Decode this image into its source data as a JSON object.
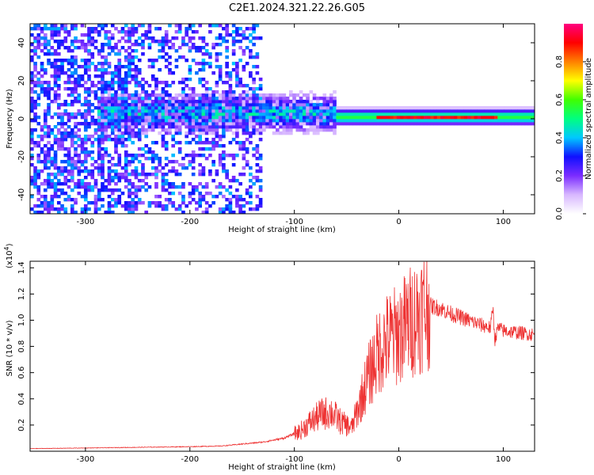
{
  "chart_data": [
    {
      "type": "heatmap",
      "title": "C2E1.2024.321.22.26.G05",
      "xlabel": "Height of straight line (km)",
      "ylabel": "Frequency (Hz)",
      "xlim": [
        -353,
        130
      ],
      "ylim": [
        -50,
        50
      ],
      "x_ticks": [
        -300,
        -200,
        -100,
        0,
        100
      ],
      "y_ticks": [
        -40,
        -20,
        0,
        20,
        40
      ],
      "grid": false,
      "colorbar": {
        "label": "Normalized spectral amplitude",
        "range": [
          0,
          1
        ],
        "ticks": [
          0.0,
          0.2,
          0.4,
          0.6,
          0.8
        ],
        "tick_labels": [
          "0.0",
          "0.2",
          "0.4",
          "0.6",
          "0.8"
        ],
        "colormap": [
          "#ffffff",
          "#d8b8ff",
          "#7b2cff",
          "#1010ff",
          "#00c8ff",
          "#00ff80",
          "#40ff00",
          "#ffff00",
          "#ff8000",
          "#ff0000",
          "#ff0080"
        ]
      },
      "features": [
        {
          "x_range": [
            -353,
            -130
          ],
          "description": "diffuse scattered purple noise across full frequency range"
        },
        {
          "x_range": [
            -280,
            -60
          ],
          "frequency_center": 3,
          "level": 0.35
        },
        {
          "x_range": [
            -60,
            130
          ],
          "frequency_center": 1,
          "level": 0.55
        },
        {
          "x_range": [
            -20,
            95
          ],
          "frequency_center": 1,
          "level": 0.95
        }
      ]
    },
    {
      "type": "line",
      "xlabel": "Height of straight line (km)",
      "ylabel": "SNR (10 * v/v)",
      "y_scale_label": "(x10",
      "y_scale_exponent": "4",
      "xlim": [
        -353,
        130
      ],
      "ylim": [
        0,
        14500
      ],
      "x_ticks": [
        -300,
        -200,
        -100,
        0,
        100
      ],
      "y_ticks": [
        0.2,
        0.4,
        0.6,
        0.8,
        1.0,
        1.2,
        1.4
      ],
      "y_tick_labels": [
        "0.2",
        "0.4",
        "0.6",
        "0.8",
        "1.0",
        "1.2",
        "1.4"
      ],
      "grid": false,
      "series": [
        {
          "color": "#ee3333",
          "x": [
            -353,
            -300,
            -250,
            -200,
            -170,
            -150,
            -130,
            -110,
            -95,
            -85,
            -75,
            -65,
            -55,
            -45,
            -38,
            -30,
            -25,
            -20,
            -15,
            -10,
            -5,
            0,
            5,
            10,
            15,
            20,
            25,
            30,
            35,
            40,
            45,
            50,
            60,
            70,
            80,
            85,
            88,
            90,
            92,
            95,
            100,
            110,
            120,
            130
          ],
          "values": [
            200,
            250,
            300,
            350,
            400,
            550,
            700,
            1000,
            1500,
            2200,
            2800,
            3000,
            2200,
            1800,
            3500,
            5500,
            6500,
            7500,
            8200,
            8500,
            8700,
            9000,
            9400,
            9800,
            10200,
            10600,
            10900,
            11100,
            11000,
            10900,
            10700,
            10500,
            10200,
            9900,
            9600,
            9500,
            9400,
            11000,
            8500,
            9400,
            9200,
            9100,
            9000,
            8900
          ]
        }
      ]
    }
  ]
}
